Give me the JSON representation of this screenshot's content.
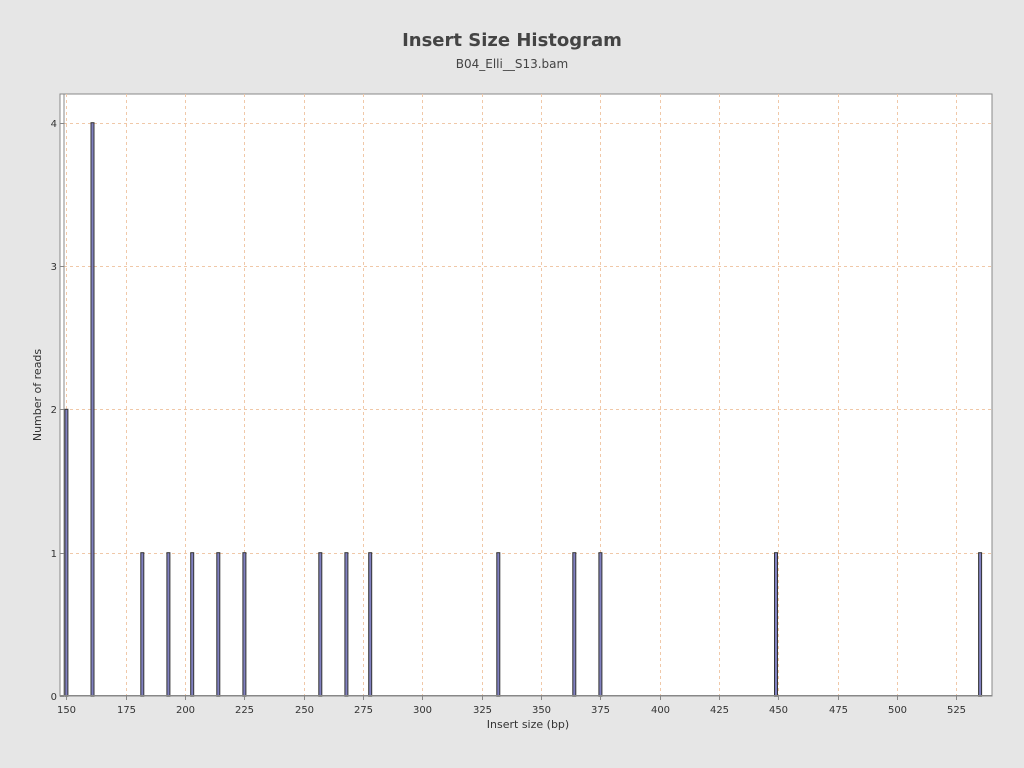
{
  "chart_data": {
    "type": "bar",
    "title": "Insert Size Histogram",
    "subtitle": "B04_Elli__S13.bam",
    "xlabel": "Insert size (bp)",
    "ylabel": "Number of reads",
    "xlim": [
      149,
      540
    ],
    "ylim": [
      0,
      4.2
    ],
    "xticks": [
      150,
      175,
      200,
      225,
      250,
      275,
      300,
      325,
      350,
      375,
      400,
      425,
      450,
      475,
      500,
      525
    ],
    "yticks": [
      0,
      1,
      2,
      3,
      4
    ],
    "grid": true,
    "legend": "none",
    "colors": {
      "bar_fill": "#8080c0",
      "bar_edge": "#333333",
      "grid": "#f0c8a8",
      "plot_bg": "#ffffff"
    },
    "x": [
      150,
      161,
      182,
      193,
      203,
      214,
      225,
      257,
      268,
      278,
      332,
      364,
      375,
      449,
      535
    ],
    "values": [
      2,
      4,
      1,
      1,
      1,
      1,
      1,
      1,
      1,
      1,
      1,
      1,
      1,
      1,
      1
    ]
  }
}
